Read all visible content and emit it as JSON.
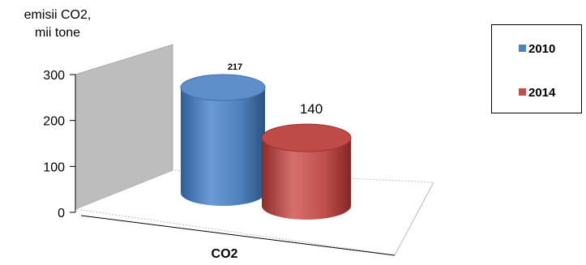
{
  "chart_data": {
    "type": "bar",
    "style": "3d-cylinder",
    "ylabel": "emisii CO2,\nmii tone",
    "categories": [
      "CO2"
    ],
    "series": [
      {
        "name": "2010",
        "values": [
          217
        ],
        "color": "#4f81bd",
        "data_label": "217"
      },
      {
        "name": "2014",
        "values": [
          140
        ],
        "color": "#c0504d",
        "data_label": "140"
      }
    ],
    "ylim": [
      0,
      300
    ],
    "yticks": [
      0,
      100,
      200,
      300
    ],
    "legend_position": "top-right",
    "grid": false
  }
}
